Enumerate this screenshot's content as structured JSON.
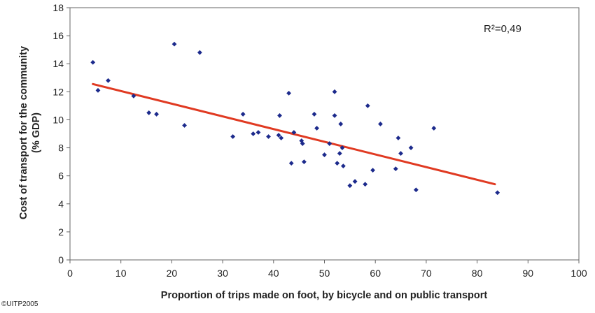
{
  "chart_data": {
    "type": "scatter",
    "xlabel": "Proportion of trips made on foot, by bicycle and on public transport",
    "ylabel_lines": [
      "Cost of transport for the community",
      "(% GDP)"
    ],
    "xlim": [
      0,
      100
    ],
    "ylim": [
      0,
      18
    ],
    "xticks": [
      0,
      10,
      20,
      30,
      40,
      50,
      60,
      70,
      80,
      90,
      100
    ],
    "yticks": [
      0,
      2,
      4,
      6,
      8,
      10,
      12,
      14,
      16,
      18
    ],
    "grid": false,
    "annotation": "R²=0,49",
    "marker_color": "#1c2a8c",
    "trend_color": "#e03a22",
    "trendline": {
      "x": [
        4.5,
        83.5
      ],
      "y": [
        12.55,
        5.4
      ]
    },
    "points": [
      {
        "x": 4.5,
        "y": 14.1
      },
      {
        "x": 5.5,
        "y": 12.1
      },
      {
        "x": 7.5,
        "y": 12.8
      },
      {
        "x": 12.5,
        "y": 11.7
      },
      {
        "x": 15.5,
        "y": 10.5
      },
      {
        "x": 17,
        "y": 10.4
      },
      {
        "x": 20.5,
        "y": 15.4
      },
      {
        "x": 22.5,
        "y": 9.6
      },
      {
        "x": 25.5,
        "y": 14.8
      },
      {
        "x": 32,
        "y": 8.8
      },
      {
        "x": 34,
        "y": 10.4
      },
      {
        "x": 36,
        "y": 9.0
      },
      {
        "x": 37,
        "y": 9.1
      },
      {
        "x": 39,
        "y": 8.8
      },
      {
        "x": 41,
        "y": 8.9
      },
      {
        "x": 41.2,
        "y": 10.3
      },
      {
        "x": 41.5,
        "y": 8.7
      },
      {
        "x": 43,
        "y": 11.9
      },
      {
        "x": 43.5,
        "y": 6.9
      },
      {
        "x": 44,
        "y": 9.1
      },
      {
        "x": 45.5,
        "y": 8.5
      },
      {
        "x": 45.7,
        "y": 8.3
      },
      {
        "x": 46,
        "y": 7.0
      },
      {
        "x": 48,
        "y": 10.4
      },
      {
        "x": 48.5,
        "y": 9.4
      },
      {
        "x": 50,
        "y": 7.5
      },
      {
        "x": 51,
        "y": 8.3
      },
      {
        "x": 52,
        "y": 12.0
      },
      {
        "x": 52,
        "y": 10.3
      },
      {
        "x": 52.5,
        "y": 6.9
      },
      {
        "x": 53,
        "y": 7.6
      },
      {
        "x": 53.2,
        "y": 9.7
      },
      {
        "x": 53.5,
        "y": 8.0
      },
      {
        "x": 53.7,
        "y": 6.7
      },
      {
        "x": 55,
        "y": 5.3
      },
      {
        "x": 56,
        "y": 5.6
      },
      {
        "x": 58,
        "y": 5.4
      },
      {
        "x": 58.5,
        "y": 11.0
      },
      {
        "x": 59.5,
        "y": 6.4
      },
      {
        "x": 61,
        "y": 9.7
      },
      {
        "x": 64,
        "y": 6.5
      },
      {
        "x": 64.5,
        "y": 8.7
      },
      {
        "x": 65,
        "y": 7.6
      },
      {
        "x": 67,
        "y": 8.0
      },
      {
        "x": 68,
        "y": 5.0
      },
      {
        "x": 71.5,
        "y": 9.4
      },
      {
        "x": 84,
        "y": 4.8
      }
    ]
  },
  "credit": "©UITP2005"
}
